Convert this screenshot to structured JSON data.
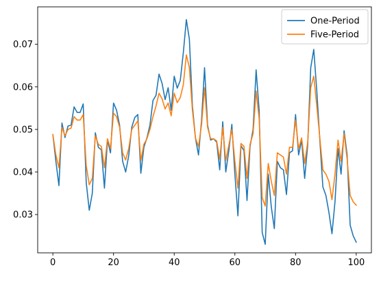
{
  "chart_data": {
    "type": "line",
    "title": "",
    "xlabel": "",
    "ylabel": "",
    "xlim": [
      -5,
      105
    ],
    "ylim": [
      0.021,
      0.0788
    ],
    "x_ticks": [
      0,
      20,
      40,
      60,
      80,
      100
    ],
    "x_tick_labels": [
      "0",
      "20",
      "40",
      "60",
      "80",
      "100"
    ],
    "y_ticks": [
      0.03,
      0.04,
      0.05,
      0.06,
      0.07
    ],
    "y_tick_labels": [
      "0.03",
      "0.04",
      "0.05",
      "0.06",
      "0.07"
    ],
    "grid": false,
    "legend_position": "top-right",
    "x": [
      0,
      1,
      2,
      3,
      4,
      5,
      6,
      7,
      8,
      9,
      10,
      11,
      12,
      13,
      14,
      15,
      16,
      17,
      18,
      19,
      20,
      21,
      22,
      23,
      24,
      25,
      26,
      27,
      28,
      29,
      30,
      31,
      32,
      33,
      34,
      35,
      36,
      37,
      38,
      39,
      40,
      41,
      42,
      43,
      44,
      45,
      46,
      47,
      48,
      49,
      50,
      51,
      52,
      53,
      54,
      55,
      56,
      57,
      58,
      59,
      60,
      61,
      62,
      63,
      64,
      65,
      66,
      67,
      68,
      69,
      70,
      71,
      72,
      73,
      74,
      75,
      76,
      77,
      78,
      79,
      80,
      81,
      82,
      83,
      84,
      85,
      86,
      87,
      88,
      89,
      90,
      91,
      92,
      93,
      94,
      95,
      96,
      97,
      98,
      99,
      100
    ],
    "series": [
      {
        "name": "One-Period",
        "color": "#1f77b4",
        "values": [
          0.0488,
          0.0425,
          0.0368,
          0.0515,
          0.0481,
          0.0508,
          0.051,
          0.0553,
          0.054,
          0.054,
          0.056,
          0.0375,
          0.031,
          0.035,
          0.0492,
          0.0458,
          0.0452,
          0.0362,
          0.0475,
          0.0445,
          0.0562,
          0.0545,
          0.051,
          0.0425,
          0.04,
          0.0438,
          0.0505,
          0.0528,
          0.0535,
          0.0397,
          0.0458,
          0.048,
          0.051,
          0.0568,
          0.058,
          0.063,
          0.0608,
          0.057,
          0.0598,
          0.0545,
          0.0625,
          0.0597,
          0.0615,
          0.068,
          0.0758,
          0.0712,
          0.0555,
          0.048,
          0.044,
          0.052,
          0.0645,
          0.051,
          0.0475,
          0.0478,
          0.047,
          0.0405,
          0.0518,
          0.04,
          0.045,
          0.0512,
          0.0395,
          0.0297,
          0.0462,
          0.045,
          0.0333,
          0.046,
          0.05,
          0.064,
          0.0545,
          0.0258,
          0.023,
          0.0395,
          0.0318,
          0.0267,
          0.0425,
          0.041,
          0.0405,
          0.0347,
          0.0445,
          0.045,
          0.0535,
          0.044,
          0.0475,
          0.0385,
          0.0463,
          0.0645,
          0.0688,
          0.059,
          0.0475,
          0.0365,
          0.0345,
          0.0305,
          0.0255,
          0.033,
          0.0455,
          0.0395,
          0.0497,
          0.044,
          0.0275,
          0.025,
          0.0235
        ]
      },
      {
        "name": "Five-Period",
        "color": "#ff7f0e",
        "values": [
          0.0488,
          0.044,
          0.041,
          0.0505,
          0.0485,
          0.05,
          0.0503,
          0.053,
          0.0522,
          0.0522,
          0.0535,
          0.0415,
          0.037,
          0.0385,
          0.0485,
          0.0465,
          0.046,
          0.041,
          0.0478,
          0.0455,
          0.0538,
          0.053,
          0.0505,
          0.0445,
          0.0428,
          0.0455,
          0.05,
          0.051,
          0.052,
          0.0427,
          0.0465,
          0.0478,
          0.05,
          0.053,
          0.0555,
          0.0585,
          0.0572,
          0.0548,
          0.0562,
          0.0532,
          0.0585,
          0.0563,
          0.0575,
          0.0605,
          0.0675,
          0.0645,
          0.0545,
          0.048,
          0.046,
          0.051,
          0.0598,
          0.0505,
          0.0478,
          0.0478,
          0.0473,
          0.043,
          0.0505,
          0.0427,
          0.0463,
          0.05,
          0.0425,
          0.0362,
          0.0467,
          0.046,
          0.0385,
          0.0465,
          0.049,
          0.059,
          0.0525,
          0.034,
          0.032,
          0.042,
          0.0378,
          0.0345,
          0.0445,
          0.044,
          0.0435,
          0.0395,
          0.0458,
          0.0458,
          0.0522,
          0.0455,
          0.048,
          0.042,
          0.047,
          0.0598,
          0.0625,
          0.0555,
          0.048,
          0.0405,
          0.0395,
          0.0378,
          0.0335,
          0.0395,
          0.0475,
          0.0425,
          0.049,
          0.043,
          0.0345,
          0.033,
          0.0322
        ]
      }
    ]
  }
}
